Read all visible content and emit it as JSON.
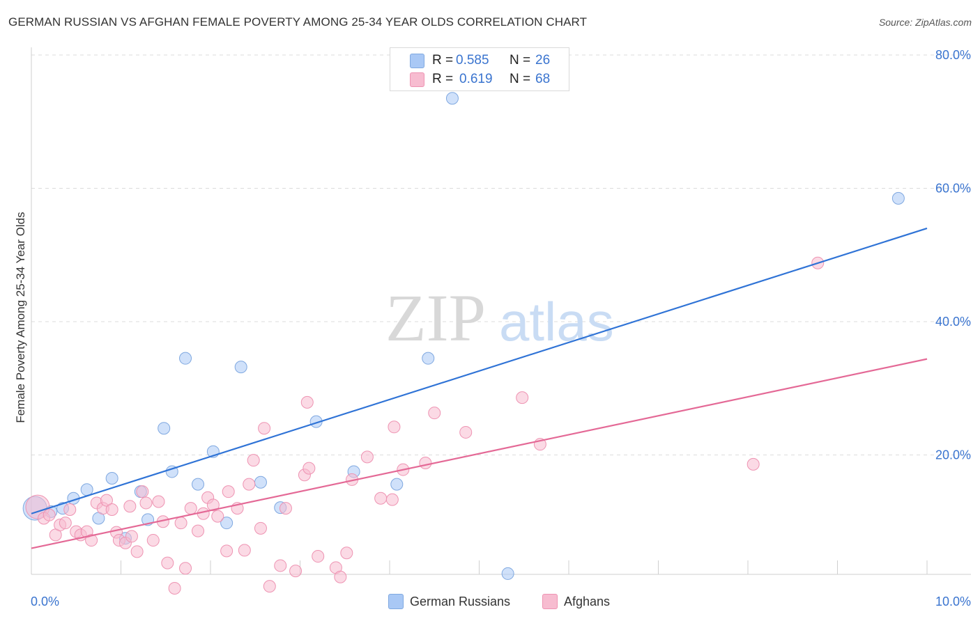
{
  "title": "GERMAN RUSSIAN VS AFGHAN FEMALE POVERTY AMONG 25-34 YEAR OLDS CORRELATION CHART",
  "source": "Source: ZipAtlas.com",
  "watermark": {
    "zip": "ZIP",
    "atlas": "atlas"
  },
  "legend": {
    "rows": [
      {
        "r_label": "R =",
        "r_value": "0.585",
        "n_label": "N =",
        "n_value": "26",
        "color": "#a9c8f5"
      },
      {
        "r_label": "R =",
        "r_value": "0.619",
        "n_label": "N =",
        "n_value": "68",
        "color": "#f7bcd0"
      }
    ]
  },
  "bottom_legend": [
    {
      "label": "German Russians",
      "color": "#a9c8f5"
    },
    {
      "label": "Afghans",
      "color": "#f7bcd0"
    }
  ],
  "chart_data": {
    "type": "scatter",
    "title": "GERMAN RUSSIAN VS AFGHAN FEMALE POVERTY AMONG 25-34 YEAR OLDS CORRELATION CHART",
    "xlabel": "",
    "ylabel": "Female Poverty Among 25-34 Year Olds",
    "xlim": [
      0,
      10
    ],
    "ylim": [
      0,
      80
    ],
    "x_tick_labels": [
      {
        "value": 0,
        "label": "0.0%"
      },
      {
        "value": 10,
        "label": "10.0%"
      }
    ],
    "y_tick_labels": [
      {
        "value": 20,
        "label": "20.0%"
      },
      {
        "value": 40,
        "label": "40.0%"
      },
      {
        "value": 60,
        "label": "60.0%"
      },
      {
        "value": 80,
        "label": "80.0%"
      }
    ],
    "grid": true,
    "series": [
      {
        "name": "German Russians",
        "color": "#a9c8f5",
        "stroke": "#7fa8e0",
        "line_color": "#2f73d6",
        "trend": {
          "x": [
            0,
            10
          ],
          "y": [
            11.2,
            54.0
          ]
        },
        "points": [
          {
            "x": 0.04,
            "y": 12.0,
            "big": true
          },
          {
            "x": 0.22,
            "y": 11.5
          },
          {
            "x": 0.35,
            "y": 12.0
          },
          {
            "x": 0.47,
            "y": 13.5
          },
          {
            "x": 0.62,
            "y": 14.8
          },
          {
            "x": 0.75,
            "y": 10.5
          },
          {
            "x": 0.9,
            "y": 16.5
          },
          {
            "x": 1.05,
            "y": 7.5
          },
          {
            "x": 1.22,
            "y": 14.5
          },
          {
            "x": 1.3,
            "y": 10.3
          },
          {
            "x": 1.48,
            "y": 24.0
          },
          {
            "x": 1.57,
            "y": 17.5
          },
          {
            "x": 1.72,
            "y": 34.5
          },
          {
            "x": 1.86,
            "y": 15.6
          },
          {
            "x": 2.03,
            "y": 20.5
          },
          {
            "x": 2.18,
            "y": 9.8
          },
          {
            "x": 2.34,
            "y": 33.2
          },
          {
            "x": 2.56,
            "y": 15.9
          },
          {
            "x": 2.78,
            "y": 12.1
          },
          {
            "x": 3.18,
            "y": 25.0
          },
          {
            "x": 3.6,
            "y": 17.5
          },
          {
            "x": 4.08,
            "y": 15.6
          },
          {
            "x": 4.43,
            "y": 34.5
          },
          {
            "x": 4.7,
            "y": 73.5
          },
          {
            "x": 5.32,
            "y": 2.2
          },
          {
            "x": 9.68,
            "y": 58.5
          }
        ]
      },
      {
        "name": "Afghans",
        "color": "#f7bcd0",
        "stroke": "#ee93b2",
        "line_color": "#e46996",
        "trend": {
          "x": [
            0,
            10
          ],
          "y": [
            6.0,
            34.4
          ]
        },
        "points": [
          {
            "x": 0.07,
            "y": 12.2,
            "big": true
          },
          {
            "x": 0.14,
            "y": 10.5
          },
          {
            "x": 0.2,
            "y": 11.0
          },
          {
            "x": 0.27,
            "y": 8.0
          },
          {
            "x": 0.32,
            "y": 9.5
          },
          {
            "x": 0.38,
            "y": 9.8
          },
          {
            "x": 0.43,
            "y": 11.8
          },
          {
            "x": 0.5,
            "y": 8.5
          },
          {
            "x": 0.55,
            "y": 8.0
          },
          {
            "x": 0.62,
            "y": 8.5
          },
          {
            "x": 0.67,
            "y": 7.2
          },
          {
            "x": 0.73,
            "y": 12.8
          },
          {
            "x": 0.8,
            "y": 12.0
          },
          {
            "x": 0.84,
            "y": 13.2
          },
          {
            "x": 0.9,
            "y": 11.8
          },
          {
            "x": 0.95,
            "y": 8.4
          },
          {
            "x": 0.98,
            "y": 7.2
          },
          {
            "x": 1.05,
            "y": 6.8
          },
          {
            "x": 1.12,
            "y": 7.8
          },
          {
            "x": 1.18,
            "y": 5.5
          },
          {
            "x": 1.24,
            "y": 14.5
          },
          {
            "x": 1.28,
            "y": 12.8
          },
          {
            "x": 1.36,
            "y": 7.2
          },
          {
            "x": 1.42,
            "y": 13.0
          },
          {
            "x": 1.47,
            "y": 10.0
          },
          {
            "x": 1.52,
            "y": 3.8
          },
          {
            "x": 1.6,
            "y": 0.0
          },
          {
            "x": 1.67,
            "y": 9.8
          },
          {
            "x": 1.72,
            "y": 3.0
          },
          {
            "x": 1.78,
            "y": 12.0
          },
          {
            "x": 1.86,
            "y": 8.6
          },
          {
            "x": 1.92,
            "y": 11.2
          },
          {
            "x": 1.97,
            "y": 13.6
          },
          {
            "x": 2.03,
            "y": 12.5
          },
          {
            "x": 2.08,
            "y": 10.8
          },
          {
            "x": 2.18,
            "y": 5.6
          },
          {
            "x": 2.2,
            "y": 14.5
          },
          {
            "x": 2.3,
            "y": 12.0
          },
          {
            "x": 2.38,
            "y": 5.7
          },
          {
            "x": 2.43,
            "y": 15.6
          },
          {
            "x": 2.48,
            "y": 19.2
          },
          {
            "x": 2.56,
            "y": 9.0
          },
          {
            "x": 2.6,
            "y": 24.0
          },
          {
            "x": 2.66,
            "y": 0.3
          },
          {
            "x": 2.78,
            "y": 3.4
          },
          {
            "x": 2.84,
            "y": 12.0
          },
          {
            "x": 2.95,
            "y": 2.6
          },
          {
            "x": 3.05,
            "y": 17.0
          },
          {
            "x": 3.1,
            "y": 18.0
          },
          {
            "x": 3.08,
            "y": 27.9
          },
          {
            "x": 3.2,
            "y": 4.8
          },
          {
            "x": 3.4,
            "y": 3.1
          },
          {
            "x": 3.45,
            "y": 1.7
          },
          {
            "x": 3.52,
            "y": 5.3
          },
          {
            "x": 3.58,
            "y": 16.3
          },
          {
            "x": 3.75,
            "y": 19.7
          },
          {
            "x": 3.9,
            "y": 13.5
          },
          {
            "x": 4.05,
            "y": 24.2
          },
          {
            "x": 4.15,
            "y": 17.8
          },
          {
            "x": 4.4,
            "y": 18.8
          },
          {
            "x": 4.5,
            "y": 26.3
          },
          {
            "x": 4.85,
            "y": 23.4
          },
          {
            "x": 5.48,
            "y": 28.6
          },
          {
            "x": 5.68,
            "y": 21.6
          },
          {
            "x": 8.06,
            "y": 18.6
          },
          {
            "x": 8.78,
            "y": 48.8
          },
          {
            "x": 4.03,
            "y": 13.3
          },
          {
            "x": 1.1,
            "y": 12.3
          }
        ]
      }
    ]
  }
}
